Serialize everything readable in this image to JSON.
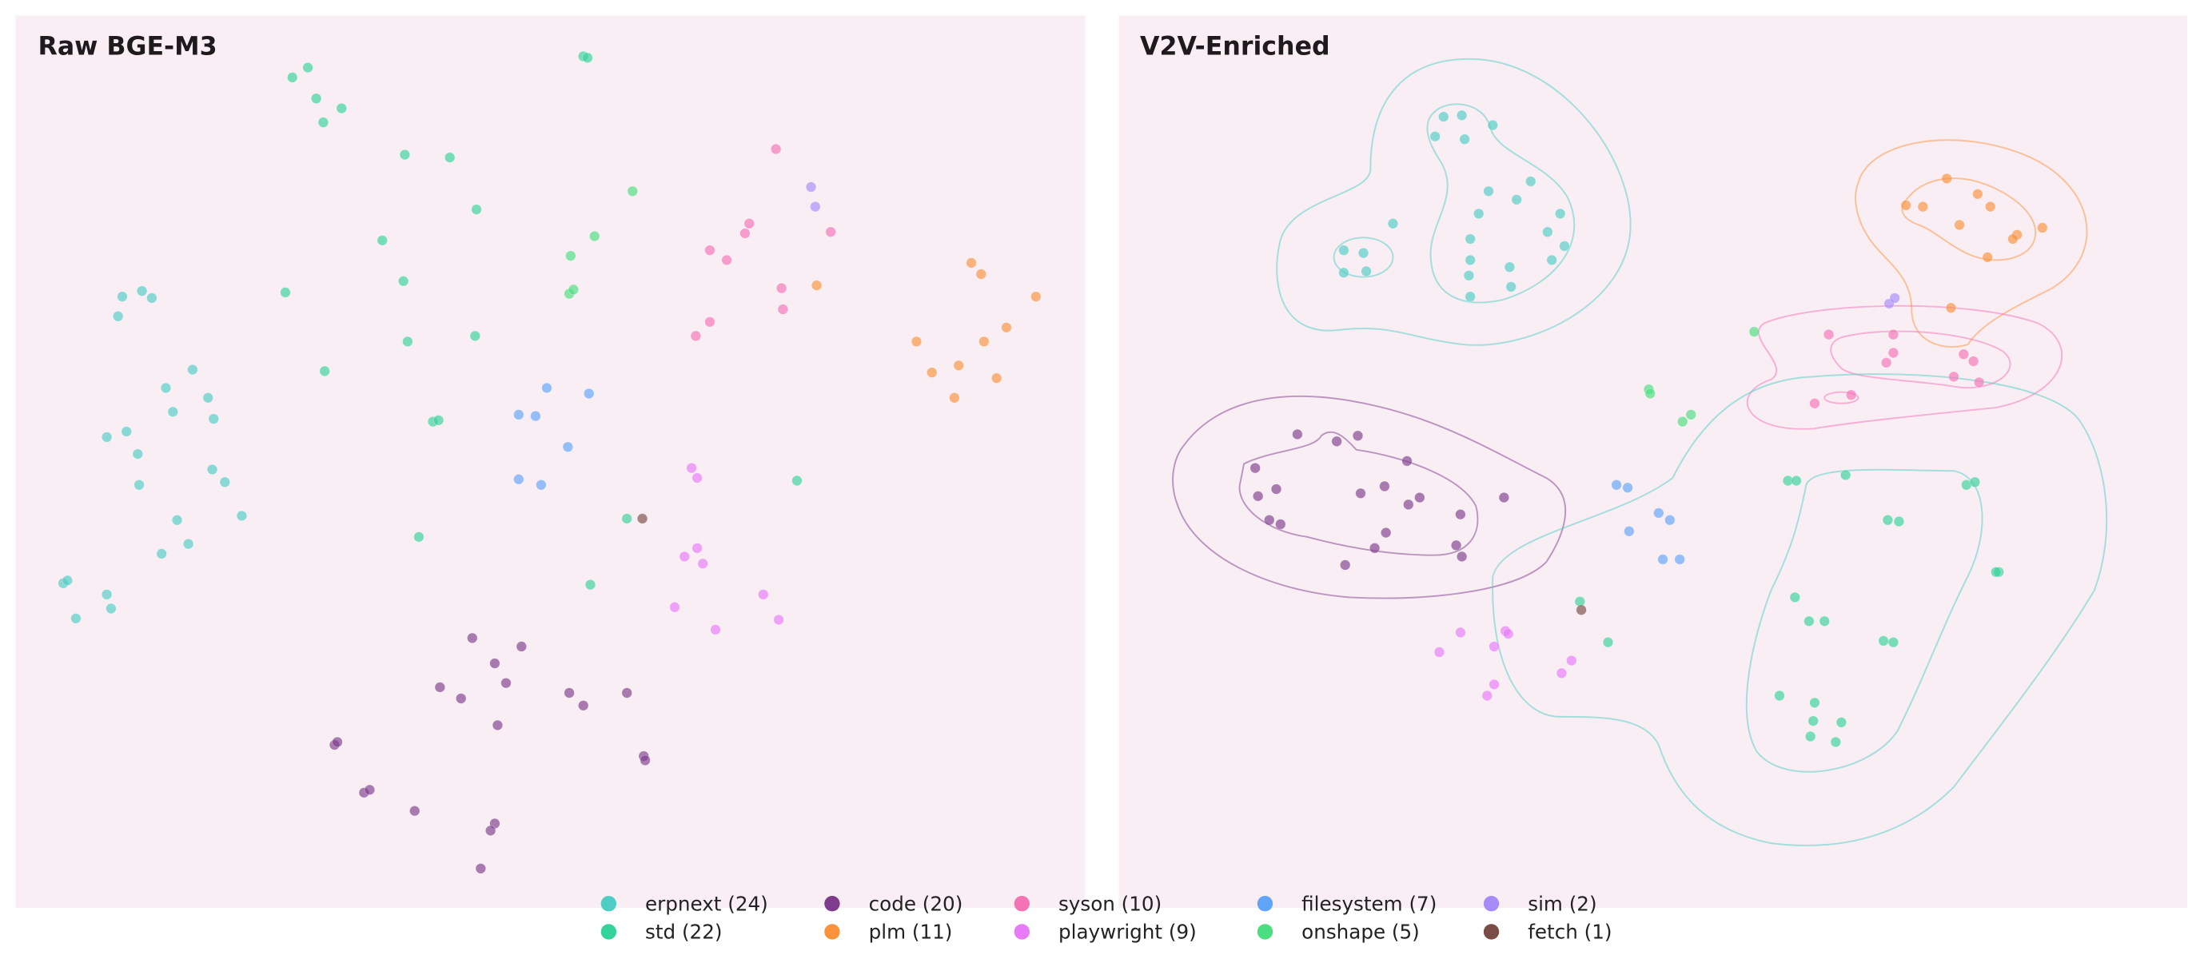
{
  "colors": {
    "erpnext": "#4ECDC4",
    "std": "#34D399",
    "code": "#7D3C8C",
    "plm": "#FB923C",
    "syson": "#F472B6",
    "playwright": "#E879F9",
    "filesystem": "#60A5FA",
    "onshape": "#4ADE80",
    "sim": "#A78BFA",
    "fetch": "#7B4B45",
    "panel_background": "#F9EEF4"
  },
  "legend": {
    "placement": "bottom-center",
    "items": [
      {
        "key": "erpnext",
        "label": "erpnext (24)"
      },
      {
        "key": "std",
        "label": "std (22)"
      },
      {
        "key": "code",
        "label": "code (20)"
      },
      {
        "key": "plm",
        "label": "plm (11)"
      },
      {
        "key": "syson",
        "label": "syson (10)"
      },
      {
        "key": "playwright",
        "label": "playwright (9)"
      },
      {
        "key": "filesystem",
        "label": "filesystem (7)"
      },
      {
        "key": "onshape",
        "label": "onshape (5)"
      },
      {
        "key": "sim",
        "label": "sim (2)"
      },
      {
        "key": "fetch",
        "label": "fetch (1)"
      }
    ]
  },
  "chart_data": [
    {
      "type": "scatter",
      "title": "Raw BGE-M3",
      "xlabel": "",
      "ylabel": "",
      "axes_visible": false,
      "grid": false,
      "xlim": [
        11,
        772
      ],
      "ylim": [
        11,
        646
      ],
      "series": [
        {
          "name": "erpnext",
          "points": [
            [
              87,
              211
            ],
            [
              101,
              207
            ],
            [
              108,
              212
            ],
            [
              84,
              225
            ],
            [
              118,
              276
            ],
            [
              137,
              263
            ],
            [
              148,
              283
            ],
            [
              123,
              293
            ],
            [
              152,
              298
            ],
            [
              76,
              311
            ],
            [
              90,
              307
            ],
            [
              98,
              323
            ],
            [
              99,
              345
            ],
            [
              151,
              334
            ],
            [
              160,
              343
            ],
            [
              126,
              370
            ],
            [
              172,
              367
            ],
            [
              134,
              387
            ],
            [
              115,
              394
            ],
            [
              45,
              415
            ],
            [
              48,
              413
            ],
            [
              76,
              423
            ],
            [
              79,
              433
            ],
            [
              54,
              440
            ]
          ]
        },
        {
          "name": "std",
          "points": [
            [
              208,
              55
            ],
            [
              219,
              48
            ],
            [
              225,
              70
            ],
            [
              243,
              77
            ],
            [
              230,
              87
            ],
            [
              288,
              110
            ],
            [
              320,
              112
            ],
            [
              339,
              149
            ],
            [
              272,
              171
            ],
            [
              287,
              200
            ],
            [
              203,
              208
            ],
            [
              290,
              243
            ],
            [
              338,
              239
            ],
            [
              231,
              264
            ],
            [
              415,
              40
            ],
            [
              418,
              41
            ],
            [
              308,
              300
            ],
            [
              312,
              299
            ],
            [
              446,
              369
            ],
            [
              298,
              382
            ],
            [
              420,
              416
            ],
            [
              567,
              342
            ]
          ]
        },
        {
          "name": "code",
          "points": [
            [
              336,
              454
            ],
            [
              371,
              460
            ],
            [
              352,
              472
            ],
            [
              360,
              486
            ],
            [
              313,
              489
            ],
            [
              328,
              497
            ],
            [
              405,
              493
            ],
            [
              415,
              502
            ],
            [
              446,
              493
            ],
            [
              354,
              516
            ],
            [
              238,
              530
            ],
            [
              240,
              528
            ],
            [
              458,
              538
            ],
            [
              459,
              541
            ],
            [
              259,
              564
            ],
            [
              263,
              562
            ],
            [
              295,
              577
            ],
            [
              352,
              586
            ],
            [
              349,
              591
            ],
            [
              342,
              618
            ]
          ]
        },
        {
          "name": "plm",
          "points": [
            [
              581,
              203
            ],
            [
              691,
              187
            ],
            [
              698,
              195
            ],
            [
              737,
              211
            ],
            [
              652,
              243
            ],
            [
              716,
              233
            ],
            [
              700,
              243
            ],
            [
              663,
              265
            ],
            [
              682,
              260
            ],
            [
              709,
              269
            ],
            [
              679,
              283
            ]
          ]
        },
        {
          "name": "syson",
          "points": [
            [
              552,
              106
            ],
            [
              533,
              159
            ],
            [
              530,
              166
            ],
            [
              505,
              178
            ],
            [
              517,
              185
            ],
            [
              556,
              205
            ],
            [
              557,
              220
            ],
            [
              505,
              229
            ],
            [
              495,
              239
            ],
            [
              591,
              165
            ]
          ]
        },
        {
          "name": "playwright",
          "points": [
            [
              492,
              333
            ],
            [
              496,
              340
            ],
            [
              496,
              390
            ],
            [
              487,
              396
            ],
            [
              500,
              401
            ],
            [
              480,
              432
            ],
            [
              543,
              423
            ],
            [
              554,
              441
            ],
            [
              509,
              448
            ]
          ]
        },
        {
          "name": "filesystem",
          "points": [
            [
              389,
              276
            ],
            [
              419,
              280
            ],
            [
              369,
              295
            ],
            [
              381,
              296
            ],
            [
              404,
              318
            ],
            [
              369,
              341
            ],
            [
              385,
              345
            ]
          ]
        },
        {
          "name": "onshape",
          "points": [
            [
              450,
              136
            ],
            [
              423,
              168
            ],
            [
              406,
              182
            ],
            [
              405,
              209
            ],
            [
              408,
              206
            ]
          ]
        },
        {
          "name": "sim",
          "points": [
            [
              577,
              133
            ],
            [
              580,
              147
            ]
          ]
        },
        {
          "name": "fetch",
          "points": [
            [
              457,
              369
            ]
          ]
        }
      ]
    },
    {
      "type": "scatter",
      "title": "V2V-Enriched",
      "xlabel": "",
      "ylabel": "",
      "axes_visible": false,
      "grid": false,
      "density_contours": true,
      "xlim": [
        796,
        1556
      ],
      "ylim": [
        11,
        646
      ],
      "series": [
        {
          "name": "erpnext",
          "points": [
            [
              1027,
              83
            ],
            [
              1040,
              82
            ],
            [
              1062,
              89
            ],
            [
              1021,
              97
            ],
            [
              1042,
              99
            ],
            [
              991,
              159
            ],
            [
              1059,
              136
            ],
            [
              1089,
              129
            ],
            [
              1079,
              142
            ],
            [
              1052,
              152
            ],
            [
              1110,
              152
            ],
            [
              1101,
              165
            ],
            [
              1113,
              175
            ],
            [
              1046,
              170
            ],
            [
              1046,
              185
            ],
            [
              1074,
              190
            ],
            [
              1104,
              185
            ],
            [
              956,
              178
            ],
            [
              970,
              180
            ],
            [
              956,
              194
            ],
            [
              972,
              193
            ],
            [
              1045,
              196
            ],
            [
              1075,
              204
            ],
            [
              1046,
              211
            ]
          ]
        },
        {
          "name": "std",
          "points": [
            [
              1272,
              342
            ],
            [
              1278,
              342
            ],
            [
              1313,
              338
            ],
            [
              1399,
              345
            ],
            [
              1405,
              343
            ],
            [
              1343,
              370
            ],
            [
              1351,
              371
            ],
            [
              1422,
              407
            ],
            [
              1420,
              407
            ],
            [
              1277,
              425
            ],
            [
              1287,
              442
            ],
            [
              1298,
              442
            ],
            [
              1340,
              456
            ],
            [
              1347,
              457
            ],
            [
              1266,
              495
            ],
            [
              1291,
              500
            ],
            [
              1290,
              513
            ],
            [
              1310,
              514
            ],
            [
              1288,
              524
            ],
            [
              1306,
              528
            ],
            [
              1124,
              428
            ],
            [
              1144,
              457
            ]
          ]
        },
        {
          "name": "code",
          "points": [
            [
              923,
              309
            ],
            [
              951,
              314
            ],
            [
              966,
              310
            ],
            [
              1001,
              328
            ],
            [
              893,
              333
            ],
            [
              895,
              353
            ],
            [
              908,
              348
            ],
            [
              968,
              351
            ],
            [
              985,
              346
            ],
            [
              1002,
              359
            ],
            [
              1010,
              354
            ],
            [
              1070,
              354
            ],
            [
              903,
              370
            ],
            [
              911,
              373
            ],
            [
              1039,
              366
            ],
            [
              986,
              379
            ],
            [
              978,
              390
            ],
            [
              1036,
              388
            ],
            [
              1040,
              396
            ],
            [
              957,
              402
            ]
          ]
        },
        {
          "name": "plm",
          "points": [
            [
              1385,
              127
            ],
            [
              1356,
              146
            ],
            [
              1368,
              147
            ],
            [
              1407,
              138
            ],
            [
              1416,
              147
            ],
            [
              1394,
              160
            ],
            [
              1435,
              167
            ],
            [
              1432,
              170
            ],
            [
              1453,
              162
            ],
            [
              1414,
              183
            ],
            [
              1388,
              219
            ]
          ]
        },
        {
          "name": "syson",
          "points": [
            [
              1301,
              238
            ],
            [
              1347,
              238
            ],
            [
              1347,
              251
            ],
            [
              1342,
              258
            ],
            [
              1397,
              252
            ],
            [
              1404,
              257
            ],
            [
              1390,
              268
            ],
            [
              1408,
              272
            ],
            [
              1317,
              281
            ],
            [
              1291,
              287
            ]
          ]
        },
        {
          "name": "playwright",
          "points": [
            [
              1039,
              450
            ],
            [
              1071,
              449
            ],
            [
              1073,
              451
            ],
            [
              1063,
              460
            ],
            [
              1024,
              464
            ],
            [
              1118,
              470
            ],
            [
              1111,
              479
            ],
            [
              1063,
              487
            ],
            [
              1058,
              495
            ]
          ]
        },
        {
          "name": "filesystem",
          "points": [
            [
              1150,
              345
            ],
            [
              1158,
              347
            ],
            [
              1180,
              365
            ],
            [
              1188,
              370
            ],
            [
              1159,
              378
            ],
            [
              1183,
              398
            ],
            [
              1195,
              398
            ]
          ]
        },
        {
          "name": "onshape",
          "points": [
            [
              1248,
              236
            ],
            [
              1173,
              277
            ],
            [
              1174,
              280
            ],
            [
              1203,
              295
            ],
            [
              1197,
              300
            ]
          ]
        },
        {
          "name": "sim",
          "points": [
            [
              1344,
              216
            ],
            [
              1348,
              212
            ]
          ]
        },
        {
          "name": "fetch",
          "points": [
            [
              1125,
              434
            ]
          ]
        }
      ]
    }
  ]
}
